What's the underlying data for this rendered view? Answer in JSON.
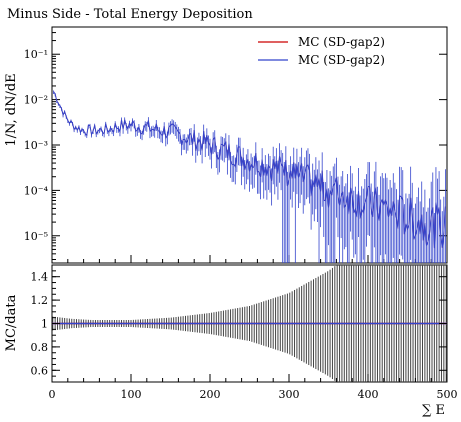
{
  "chart_data": [
    {
      "type": "line",
      "title": "Minus Side - Total Energy Deposition",
      "ylabel": "1/N, dN/dE",
      "xlim": [
        0,
        500
      ],
      "ylim_log10": [
        -5.6,
        -0.4
      ],
      "y_scale": "log",
      "yticks": [
        {
          "label": "10⁻¹",
          "value": 0.1
        },
        {
          "label": "10⁻²",
          "value": 0.01
        },
        {
          "label": "10⁻³",
          "value": 0.001
        },
        {
          "label": "10⁻⁴",
          "value": 0.0001
        },
        {
          "label": "10⁻⁵",
          "value": 1e-05
        }
      ],
      "legend_placement": "top-right",
      "series": [
        {
          "name": "MC (SD-gap2)",
          "color": "#cc0000"
        },
        {
          "name": "MC (SD-gap2)",
          "color": "#3344cc"
        }
      ],
      "x": [
        2,
        5,
        10,
        15,
        20,
        25,
        30,
        40,
        50,
        60,
        70,
        80,
        90,
        100,
        110,
        120,
        130,
        140,
        150,
        160,
        170,
        180,
        190,
        200,
        210,
        220,
        230,
        240,
        250,
        260,
        270,
        280,
        290,
        300,
        310,
        320,
        330,
        340,
        350,
        360,
        370,
        380,
        390,
        400,
        410,
        420,
        430,
        440,
        450,
        460,
        470,
        480,
        490,
        498
      ],
      "y": [
        0.015,
        0.012,
        0.0075,
        0.005,
        0.0036,
        0.0029,
        0.0025,
        0.0021,
        0.0021,
        0.0021,
        0.0022,
        0.0025,
        0.0027,
        0.0028,
        0.0026,
        0.0024,
        0.0022,
        0.0021,
        0.0019,
        0.0017,
        0.0015,
        0.0013,
        0.0012,
        0.001,
        0.00085,
        0.00075,
        0.00065,
        0.00055,
        0.00048,
        0.00043,
        0.00038,
        0.00033,
        0.00028,
        0.00024,
        0.0002,
        0.00017,
        0.00015,
        0.00012,
        0.0001,
        9e-05,
        8e-05,
        7e-05,
        6e-05,
        5e-05,
        4.5e-05,
        4e-05,
        3.5e-05,
        3e-05,
        2.5e-05,
        2.2e-05,
        2e-05,
        1.8e-05,
        1.6e-05,
        1.5e-05
      ]
    },
    {
      "type": "line",
      "xlabel": "∑ E",
      "ylabel": "MC/data",
      "xlim": [
        0,
        500
      ],
      "ylim": [
        0.5,
        1.5
      ],
      "xticks": [
        "0",
        "100",
        "200",
        "300",
        "400",
        "500"
      ],
      "yticks": [
        "0.6",
        "0.8",
        "1",
        "1.2",
        "1.4"
      ],
      "ratio_value": 1.0,
      "band_x": [
        0,
        25,
        50,
        75,
        100,
        150,
        200,
        250,
        300,
        350,
        400,
        450,
        500
      ],
      "band_halfwidth": [
        0.06,
        0.04,
        0.03,
        0.03,
        0.03,
        0.05,
        0.09,
        0.15,
        0.26,
        0.45,
        0.7,
        0.9,
        1.0
      ]
    }
  ],
  "legend": [
    {
      "label": "MC (SD-gap2)",
      "color": "#cc0000"
    },
    {
      "label": "MC (SD-gap2)",
      "color": "#3344cc"
    }
  ]
}
